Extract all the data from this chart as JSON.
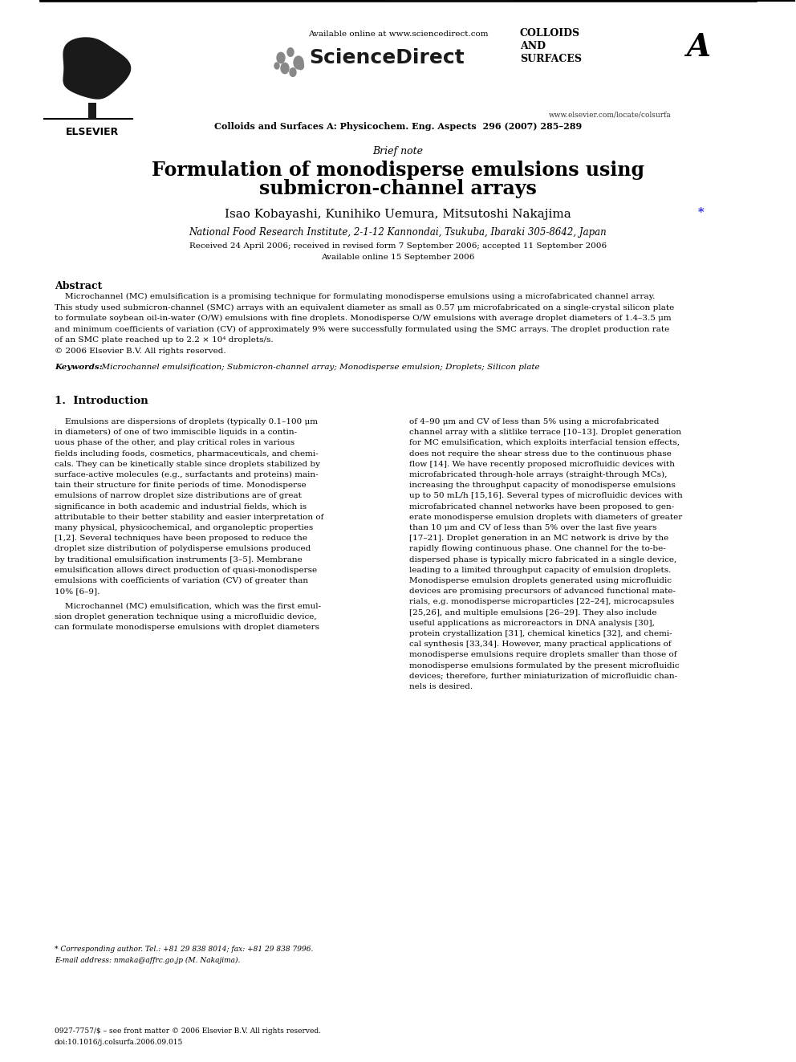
{
  "page_width": 9.92,
  "page_height": 13.23,
  "dpi": 100,
  "bg_color": "#ffffff",
  "header": {
    "available_online": "Available online at www.sciencedirect.com",
    "sciencedirect": "ScienceDirect",
    "elsevier": "ELSEVIER",
    "journal_name": "Colloids and Surfaces A: Physicochem. Eng. Aspects  296 (2007) 285–289",
    "colloids_text": "COLLOIDS\nAND\nSURFACES",
    "colloids_a": "A",
    "website": "www.elsevier.com/locate/colsurfa"
  },
  "article_type": "Brief note",
  "title_line1": "Formulation of monodisperse emulsions using",
  "title_line2": "submicron-channel arrays",
  "authors": "Isao Kobayashi, Kunihiko Uemura, Mitsutoshi Nakajima",
  "authors_star": "*",
  "affiliation": "National Food Research Institute, 2-1-12 Kannondai, Tsukuba, Ibaraki 305-8642, Japan",
  "received_line1": "Received 24 April 2006; received in revised form 7 September 2006; accepted 11 September 2006",
  "received_line2": "Available online 15 September 2006",
  "abstract_title": "Abstract",
  "abstract_lines": [
    "    Microchannel (MC) emulsification is a promising technique for formulating monodisperse emulsions using a microfabricated channel array.",
    "This study used submicron-channel (SMC) arrays with an equivalent diameter as small as 0.57 μm microfabricated on a single-crystal silicon plate",
    "to formulate soybean oil-in-water (O/W) emulsions with fine droplets. Monodisperse O/W emulsions with average droplet diameters of 1.4–3.5 μm",
    "and minimum coefficients of variation (CV) of approximately 9% were successfully formulated using the SMC arrays. The droplet production rate",
    "of an SMC plate reached up to 2.2 × 10⁴ droplets/s.",
    "© 2006 Elsevier B.V. All rights reserved."
  ],
  "keywords_label": "Keywords:",
  "keywords_text": "  Microchannel emulsification; Submicron-channel array; Monodisperse emulsion; Droplets; Silicon plate",
  "section1_title": "1.  Introduction",
  "col1_lines": [
    "    Emulsions are dispersions of droplets (typically 0.1–100 μm",
    "in diameters) of one of two immiscible liquids in a contin-",
    "uous phase of the other, and play critical roles in various",
    "fields including foods, cosmetics, pharmaceuticals, and chemi-",
    "cals. They can be kinetically stable since droplets stabilized by",
    "surface-active molecules (e.g., surfactants and proteins) main-",
    "tain their structure for finite periods of time. Monodisperse",
    "emulsions of narrow droplet size distributions are of great",
    "significance in both academic and industrial fields, which is",
    "attributable to their better stability and easier interpretation of",
    "many physical, physicochemical, and organoleptic properties",
    "[1,2]. Several techniques have been proposed to reduce the",
    "droplet size distribution of polydisperse emulsions produced",
    "by traditional emulsification instruments [3–5]. Membrane",
    "emulsification allows direct production of quasi-monodisperse",
    "emulsions with coefficients of variation (CV) of greater than",
    "10% [6–9].",
    "    Microchannel (MC) emulsification, which was the first emul-",
    "sion droplet generation technique using a microfluidic device,",
    "can formulate monodisperse emulsions with droplet diameters"
  ],
  "col2_lines": [
    "of 4–90 μm and CV of less than 5% using a microfabricated",
    "channel array with a slitlike terrace [10–13]. Droplet generation",
    "for MC emulsification, which exploits interfacial tension effects,",
    "does not require the shear stress due to the continuous phase",
    "flow [14]. We have recently proposed microfluidic devices with",
    "microfabricated through-hole arrays (straight-through MCs),",
    "increasing the throughput capacity of monodisperse emulsions",
    "up to 50 mL/h [15,16]. Several types of microfluidic devices with",
    "microfabricated channel networks have been proposed to gen-",
    "erate monodisperse emulsion droplets with diameters of greater",
    "than 10 μm and CV of less than 5% over the last five years",
    "[17–21]. Droplet generation in an MC network is drive by the",
    "rapidly flowing continuous phase. One channel for the to-be-",
    "dispersed phase is typically micro fabricated in a single device,",
    "leading to a limited throughput capacity of emulsion droplets.",
    "Monodisperse emulsion droplets generated using microfluidic",
    "devices are promising precursors of advanced functional mate-",
    "rials, e.g. monodisperse microparticles [22–24], microcapsules",
    "[25,26], and multiple emulsions [26–29]. They also include",
    "useful applications as microreactors in DNA analysis [30],",
    "protein crystallization [31], chemical kinetics [32], and chemi-",
    "cal synthesis [33,34]. However, many practical applications of",
    "monodisperse emulsions require droplets smaller than those of",
    "monodisperse emulsions formulated by the present microfluidic",
    "devices; therefore, further miniaturization of microfluidic chan-",
    "nels is desired."
  ],
  "footnote_line1": "* Corresponding author. Tel.: +81 29 838 8014; fax: +81 29 838 7996.",
  "footnote_line2": "E-mail address: nmaka@affrc.go.jp (M. Nakajima).",
  "footer_line1": "0927-7757/$ – see front matter © 2006 Elsevier B.V. All rights reserved.",
  "footer_line2": "doi:10.1016/j.colsurfa.2006.09.015"
}
